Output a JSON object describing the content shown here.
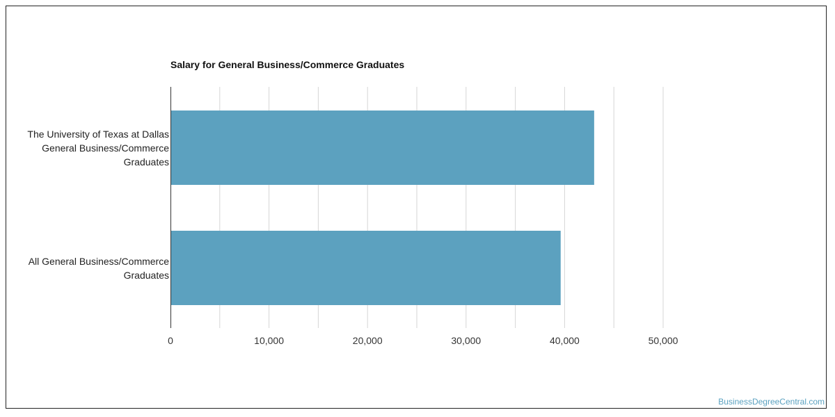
{
  "chart_data": {
    "type": "bar",
    "orientation": "horizontal",
    "title": "Salary for General Business/Commerce Graduates",
    "categories": [
      [
        "The University of Texas at Dallas",
        "General Business/Commerce",
        "Graduates"
      ],
      [
        "All General Business/Commerce",
        "Graduates"
      ]
    ],
    "values": [
      43000,
      39600
    ],
    "xticks": [
      "0",
      "10,000",
      "20,000",
      "30,000",
      "40,000",
      "50,000"
    ],
    "xlim": [
      0,
      50000
    ],
    "grid": true,
    "bar_color": "#5ca1bf",
    "grid_color": "#d6d6d6"
  },
  "watermark": "BusinessDegreeCentral.com"
}
